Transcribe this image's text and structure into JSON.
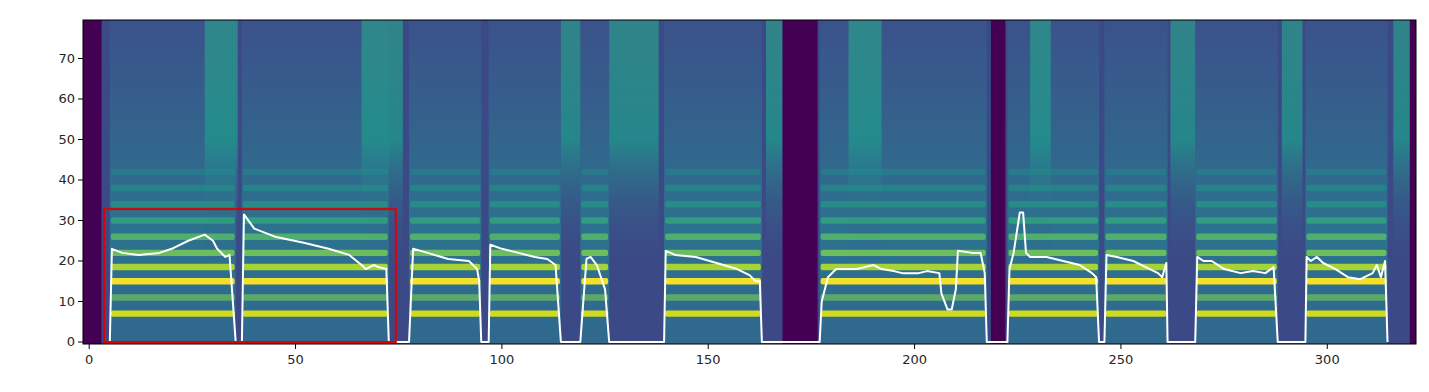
{
  "chart_data": {
    "type": "spectrogram",
    "xlim": [
      -1.5,
      321.5
    ],
    "ylim": [
      -0.5,
      79.5
    ],
    "xticks": [
      0,
      50,
      100,
      150,
      200,
      250,
      300
    ],
    "yticks": [
      0,
      10,
      20,
      30,
      40,
      50,
      60,
      70
    ],
    "color": "#ffffff",
    "x": [
      5,
      5.5,
      8,
      12,
      17,
      20,
      24,
      28,
      30,
      31,
      33,
      34,
      35.5,
      37,
      37.5,
      40,
      45,
      52,
      58,
      63,
      66,
      67,
      69,
      70,
      72,
      72.6,
      77.5,
      78.5,
      82,
      87,
      92,
      94,
      94.5,
      95,
      96.8,
      97.2,
      100,
      104,
      108,
      111,
      113,
      114.3,
      119,
      120.5,
      121.5,
      123,
      125,
      126,
      139.3,
      139.7,
      142,
      147,
      152,
      157,
      160,
      161.5,
      162.5,
      163,
      177,
      177.5,
      179,
      181,
      186,
      190,
      192,
      195,
      197,
      201,
      203,
      206,
      206.5,
      208,
      209,
      210,
      210.5,
      214,
      216,
      217,
      217.5,
      222.5,
      223,
      224,
      225.5,
      226.3,
      227,
      228,
      232,
      236,
      240,
      243,
      244,
      244.7,
      246,
      246.5,
      249,
      253,
      256,
      259,
      260,
      261,
      261.3,
      268,
      268.5,
      270,
      272,
      275,
      279,
      282,
      285,
      287,
      288,
      294.7,
      295,
      296,
      297.5,
      299,
      302,
      305,
      308,
      311,
      312,
      313,
      314,
      314.6
    ],
    "values": [
      0,
      23,
      22,
      21.5,
      22,
      23,
      25,
      26.5,
      25,
      23,
      21,
      21.5,
      0,
      0,
      31.5,
      28,
      26,
      24.5,
      23,
      21.5,
      19,
      18,
      19,
      18.5,
      18,
      0,
      0,
      23,
      22,
      20.5,
      20,
      18,
      15,
      0,
      0,
      24,
      23,
      22,
      21,
      20.5,
      19,
      0,
      0,
      20.5,
      21,
      19,
      13,
      0,
      0,
      22.5,
      21.5,
      21,
      19.5,
      18,
      16.5,
      15,
      15,
      0,
      0,
      10,
      16,
      18,
      18,
      19,
      18,
      17.5,
      17,
      17,
      17.5,
      17,
      12,
      8,
      8,
      13,
      22.5,
      22,
      22,
      17,
      0,
      0,
      18,
      22,
      32,
      32,
      22,
      21,
      21,
      20,
      19,
      17,
      16,
      0,
      0,
      21.5,
      21,
      20,
      18.5,
      17,
      16,
      19.5,
      0,
      0,
      21,
      20,
      20,
      18,
      17,
      17.5,
      17,
      18.5,
      0,
      0,
      21,
      20,
      21,
      19.5,
      18,
      16,
      15.5,
      17,
      19,
      16,
      20,
      0
    ],
    "spectrogram": {
      "voiced": [
        [
          5,
          35.5
        ],
        [
          37,
          72.6
        ],
        [
          77.5,
          95
        ],
        [
          96.8,
          114.3
        ],
        [
          119,
          126
        ],
        [
          139.3,
          163
        ],
        [
          177,
          217.5
        ],
        [
          222.5,
          244.7
        ],
        [
          246,
          261.3
        ],
        [
          268,
          288
        ],
        [
          294.7,
          314.6
        ]
      ],
      "fricative": [
        [
          28,
          36
        ],
        [
          66,
          76
        ],
        [
          114.3,
          119
        ],
        [
          126,
          138
        ],
        [
          164,
          168
        ],
        [
          184,
          192
        ],
        [
          228,
          233
        ],
        [
          262,
          268
        ],
        [
          289,
          294
        ],
        [
          316,
          321.5
        ]
      ],
      "silence": [
        [
          -1.5,
          3
        ],
        [
          168,
          176.5
        ],
        [
          218.5,
          222
        ],
        [
          320,
          321.5
        ]
      ],
      "harmonics": [
        7,
        11,
        15,
        18.5,
        22,
        26,
        30,
        34,
        38,
        42
      ]
    },
    "box": {
      "x": [
        3.6,
        74.3
      ],
      "y": [
        0,
        32.8
      ]
    }
  }
}
